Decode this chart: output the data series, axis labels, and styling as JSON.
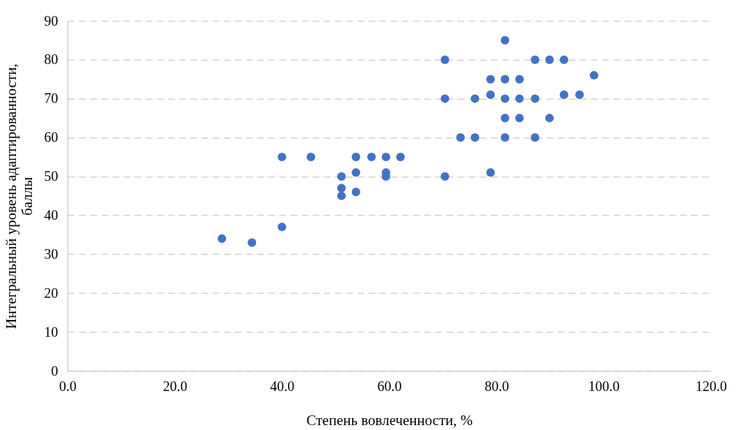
{
  "chart_data": {
    "type": "scatter",
    "xlabel": "Степень вовлеченности, %",
    "ylabel": "Интегральный уровень адаптированности, баллы",
    "xlim": [
      0,
      120
    ],
    "xticks": [
      {
        "value": 0,
        "label": "0.0"
      },
      {
        "value": 20,
        "label": "20.0"
      },
      {
        "value": 40,
        "label": "40.0"
      },
      {
        "value": 60,
        "label": "60.0"
      },
      {
        "value": 80,
        "label": "80.0"
      },
      {
        "value": 100,
        "label": "100.0"
      },
      {
        "value": 120,
        "label": "120.0"
      }
    ],
    "ylim": [
      0,
      90
    ],
    "yticks": [
      0,
      10,
      20,
      30,
      40,
      50,
      60,
      70,
      80,
      90
    ],
    "grid": "y",
    "marker": "circle",
    "series": [
      {
        "color": "#4472c4",
        "x": [
          28.8,
          34.4,
          40.0,
          40.0,
          45.4,
          51.1,
          51.1,
          51.1,
          53.8,
          53.8,
          53.8,
          56.7,
          59.4,
          59.4,
          59.4,
          62.1,
          70.4,
          70.4,
          70.4,
          73.3,
          76.0,
          76.0,
          78.9,
          78.9,
          78.9,
          81.6,
          81.6,
          81.6,
          81.6,
          81.6,
          84.3,
          84.3,
          84.3,
          87.2,
          87.2,
          87.2,
          89.9,
          89.9,
          92.6,
          92.6,
          95.5,
          98.2
        ],
        "values": [
          34,
          33,
          55,
          37,
          55,
          50,
          47,
          45,
          55,
          51,
          46,
          55,
          55,
          51,
          50,
          55,
          80,
          70,
          50,
          60,
          70,
          60,
          75,
          71,
          51,
          85,
          75,
          70,
          65,
          60,
          75,
          70,
          65,
          80,
          70,
          60,
          80,
          65,
          80,
          71,
          71,
          76
        ]
      }
    ]
  }
}
